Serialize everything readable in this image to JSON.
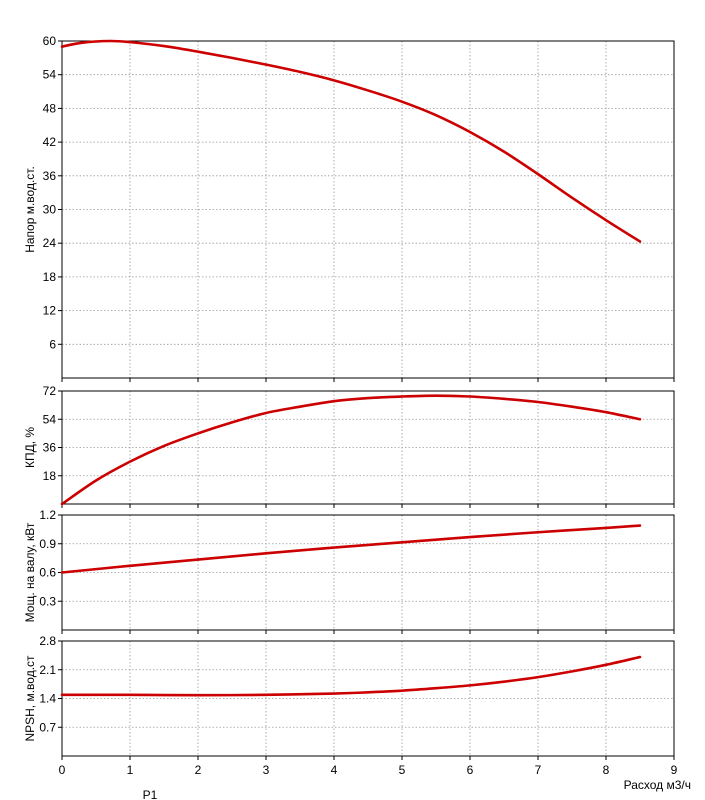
{
  "chart_data": {
    "type": "line",
    "xlabel": "Расход м3/ч",
    "xlim": [
      0,
      9
    ],
    "xticks": [
      "0",
      "1",
      "2",
      "3",
      "4",
      "5",
      "6",
      "7",
      "8",
      "9"
    ],
    "grid": true,
    "curve_color": "#cc0000",
    "footer_label": "P1",
    "panels": [
      {
        "ylabel": "Напор м.вод.ст.",
        "ylim": [
          0,
          60
        ],
        "yticks": [
          "6",
          "12",
          "18",
          "24",
          "30",
          "36",
          "42",
          "48",
          "54",
          "60"
        ],
        "x": [
          0,
          0.3,
          0.7,
          1,
          1.5,
          2,
          2.5,
          3,
          3.5,
          4,
          4.5,
          5,
          5.5,
          6,
          6.5,
          7,
          7.5,
          8,
          8.5
        ],
        "values": [
          59,
          59.7,
          60,
          59.8,
          59.1,
          58.1,
          57,
          55.8,
          54.5,
          53,
          51.2,
          49.2,
          46.8,
          43.8,
          40.3,
          36.3,
          32.1,
          28.1,
          24.3
        ]
      },
      {
        "ylabel": "КПД, %",
        "ylim": [
          0,
          72
        ],
        "yticks": [
          "18",
          "36",
          "54",
          "72"
        ],
        "x": [
          0,
          0.5,
          1,
          1.5,
          2,
          2.5,
          3,
          3.5,
          4,
          4.5,
          5,
          5.5,
          6,
          6.5,
          7,
          7.5,
          8,
          8.5
        ],
        "values": [
          0,
          15,
          27,
          37,
          45,
          52,
          58,
          62,
          65.5,
          67.5,
          68.5,
          69,
          68.5,
          67,
          65,
          62,
          58.5,
          54
        ]
      },
      {
        "ylabel": "Мощ. на валу, кВт",
        "ylim": [
          0,
          1.2
        ],
        "yticks": [
          "0.3",
          "0.6",
          "0.9",
          "1.2"
        ],
        "x": [
          0,
          1,
          2,
          3,
          4,
          5,
          6,
          7,
          8,
          8.5
        ],
        "values": [
          0.6,
          0.67,
          0.735,
          0.8,
          0.86,
          0.915,
          0.97,
          1.02,
          1.065,
          1.09
        ]
      },
      {
        "ylabel": "NPSH, м.вод.ст",
        "ylim": [
          0,
          2.8
        ],
        "yticks": [
          "0.7",
          "1.4",
          "2.1",
          "2.8"
        ],
        "x": [
          0,
          1,
          2,
          3,
          4,
          4.5,
          5,
          5.5,
          6,
          6.5,
          7,
          7.5,
          8,
          8.5
        ],
        "values": [
          1.49,
          1.49,
          1.48,
          1.49,
          1.52,
          1.55,
          1.59,
          1.65,
          1.72,
          1.81,
          1.92,
          2.06,
          2.22,
          2.41
        ]
      }
    ]
  }
}
